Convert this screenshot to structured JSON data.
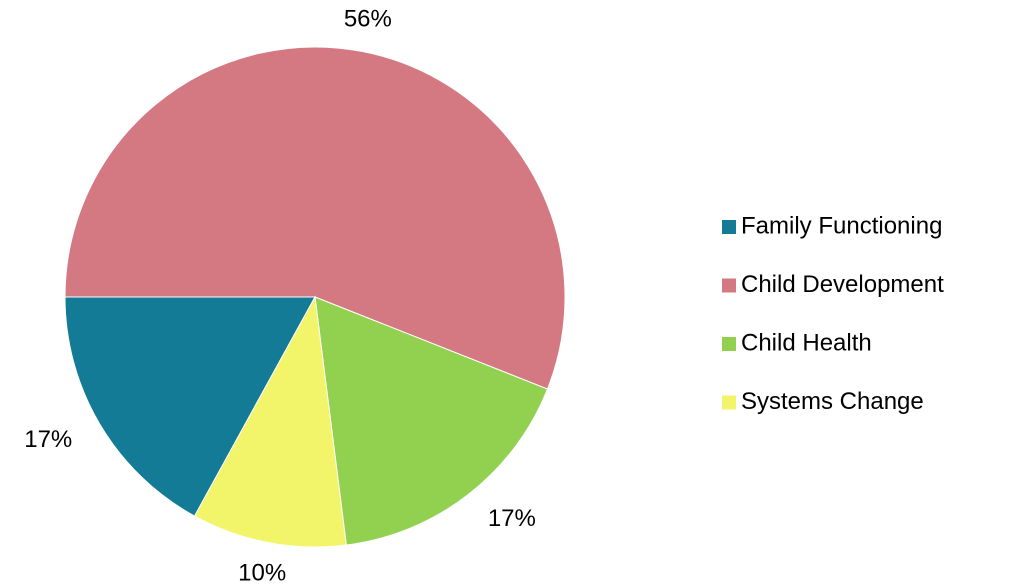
{
  "chart_data": {
    "type": "pie",
    "categories": [
      "Family Functioning",
      "Child Development",
      "Child Health",
      "Systems Change"
    ],
    "values": [
      17,
      56,
      17,
      10
    ],
    "value_labels": [
      "17%",
      "56%",
      "17%",
      "10%"
    ],
    "colors": [
      "#137b96",
      "#d47882",
      "#92d050",
      "#f2f56a"
    ],
    "legend": "right"
  }
}
